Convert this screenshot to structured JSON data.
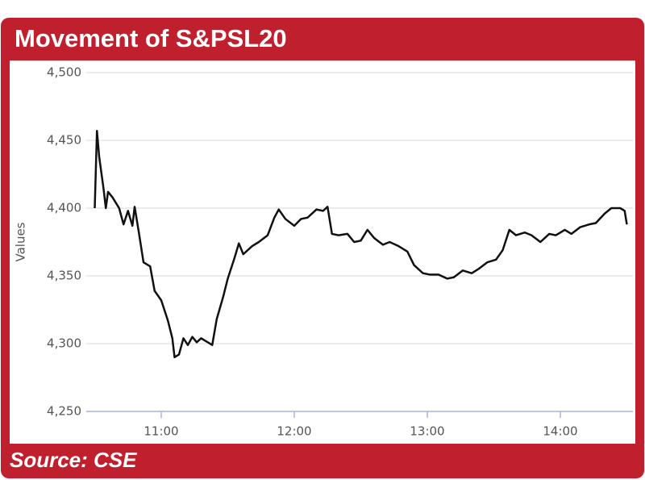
{
  "chart_data": {
    "type": "line",
    "title": "Movement of S&PSL20",
    "source": "Source: CSE",
    "y_label": "Values",
    "x": [
      "10:30",
      "10:31",
      "10:32",
      "10:34",
      "10:35",
      "10:36",
      "10:38",
      "10:41",
      "10:43",
      "10:45",
      "10:47",
      "10:48",
      "10:50",
      "10:52",
      "10:55",
      "10:57",
      "11:00",
      "11:03",
      "11:05",
      "11:06",
      "11:08",
      "11:10",
      "11:12",
      "11:14",
      "11:16",
      "11:18",
      "11:21",
      "11:23",
      "11:25",
      "11:28",
      "11:30",
      "11:33",
      "11:35",
      "11:37",
      "11:41",
      "11:44",
      "11:48",
      "11:51",
      "11:53",
      "11:56",
      "12:00",
      "12:03",
      "12:06",
      "12:10",
      "12:13",
      "12:15",
      "12:17",
      "12:20",
      "12:24",
      "12:27",
      "12:30",
      "12:33",
      "12:36",
      "12:40",
      "12:43",
      "12:47",
      "12:51",
      "12:54",
      "12:58",
      "13:01",
      "13:05",
      "13:09",
      "13:12",
      "13:16",
      "13:20",
      "13:23",
      "13:27",
      "13:31",
      "13:34",
      "13:37",
      "13:40",
      "13:44",
      "13:47",
      "13:51",
      "13:55",
      "13:58",
      "14:02",
      "14:05",
      "14:09",
      "14:13",
      "14:16",
      "14:20",
      "14:23",
      "14:27",
      "14:29",
      "14:30"
    ],
    "values": [
      4400,
      4457,
      4438,
      4414,
      4400,
      4412,
      4408,
      4400,
      4388,
      4398,
      4387,
      4401,
      4381,
      4360,
      4357,
      4339,
      4332,
      4317,
      4304,
      4290,
      4292,
      4304,
      4299,
      4305,
      4301,
      4304,
      4301,
      4299,
      4318,
      4335,
      4348,
      4363,
      4374,
      4366,
      4372,
      4375,
      4380,
      4393,
      4399,
      4392,
      4387,
      4392,
      4393,
      4399,
      4398,
      4401,
      4381,
      4380,
      4381,
      4375,
      4376,
      4384,
      4378,
      4373,
      4375,
      4372,
      4368,
      4358,
      4352,
      4351,
      4351,
      4348,
      4349,
      4354,
      4352,
      4355,
      4360,
      4362,
      4369,
      4384,
      4380,
      4382,
      4380,
      4375,
      4381,
      4380,
      4384,
      4381,
      4386,
      4388,
      4389,
      4396,
      4400,
      4400,
      4398,
      4388
    ],
    "color": "#111111",
    "xlim": [
      "10:30",
      "14:30"
    ],
    "xticks": [
      "11:00",
      "12:00",
      "13:00",
      "14:00"
    ],
    "ylim": [
      4250,
      4500
    ],
    "yticks": [
      {
        "value": 4250,
        "label": "4,250"
      },
      {
        "value": 4300,
        "label": "4,300"
      },
      {
        "value": 4350,
        "label": "4,350"
      },
      {
        "value": 4400,
        "label": "4,400"
      },
      {
        "value": 4450,
        "label": "4,450"
      },
      {
        "value": 4500,
        "label": "4,500"
      }
    ],
    "grid": true
  }
}
